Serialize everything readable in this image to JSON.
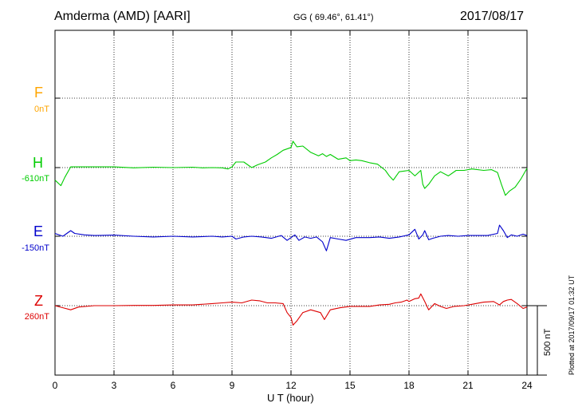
{
  "header": {
    "station": "Amderma (AMD)  [AARI]",
    "coords": "GG ( 69.46°,  61.41°)",
    "date": "2017/08/17"
  },
  "footer": {
    "xlabel": "U T (hour)",
    "plotted": "Plotted at 2017/09/17 01:32 UT",
    "scale_label": "500 nT"
  },
  "components": [
    {
      "name": "F",
      "baseline": "0nT",
      "color": "#ffa500"
    },
    {
      "name": "H",
      "baseline": "-610nT",
      "color": "#00cc00"
    },
    {
      "name": "E",
      "baseline": "-150nT",
      "color": "#0000cc"
    },
    {
      "name": "Z",
      "baseline": "260nT",
      "color": "#dd0000"
    }
  ],
  "chart_data": {
    "type": "line",
    "x_unit": "UT hour",
    "xlim": [
      0,
      24
    ],
    "x_ticks": [
      0,
      3,
      6,
      9,
      12,
      15,
      18,
      21,
      24
    ],
    "y_unit": "nT relative to each component baseline",
    "grid": true,
    "series": [
      {
        "name": "H",
        "color": "#00cc00",
        "points": [
          [
            0,
            -90
          ],
          [
            0.3,
            -130
          ],
          [
            0.5,
            -70
          ],
          [
            0.8,
            5
          ],
          [
            1.5,
            5
          ],
          [
            2,
            5
          ],
          [
            3,
            5
          ],
          [
            4,
            -2
          ],
          [
            5,
            3
          ],
          [
            6,
            0
          ],
          [
            7,
            3
          ],
          [
            7.5,
            -2
          ],
          [
            8,
            0
          ],
          [
            8.5,
            -2
          ],
          [
            8.8,
            -10
          ],
          [
            9,
            5
          ],
          [
            9.2,
            40
          ],
          [
            9.6,
            40
          ],
          [
            10,
            0
          ],
          [
            10.3,
            20
          ],
          [
            10.7,
            40
          ],
          [
            11,
            70
          ],
          [
            11.3,
            95
          ],
          [
            11.6,
            125
          ],
          [
            12,
            145
          ],
          [
            12.1,
            190
          ],
          [
            12.3,
            150
          ],
          [
            12.6,
            155
          ],
          [
            13,
            110
          ],
          [
            13.4,
            85
          ],
          [
            13.6,
            100
          ],
          [
            13.8,
            80
          ],
          [
            14,
            95
          ],
          [
            14.4,
            60
          ],
          [
            14.8,
            70
          ],
          [
            15,
            50
          ],
          [
            15.3,
            55
          ],
          [
            15.6,
            50
          ],
          [
            16,
            35
          ],
          [
            16.4,
            25
          ],
          [
            16.8,
            -20
          ],
          [
            17,
            -60
          ],
          [
            17.2,
            -90
          ],
          [
            17.5,
            -30
          ],
          [
            18,
            -20
          ],
          [
            18.3,
            -60
          ],
          [
            18.6,
            -20
          ],
          [
            18.7,
            -120
          ],
          [
            18.8,
            -150
          ],
          [
            19,
            -120
          ],
          [
            19.3,
            -60
          ],
          [
            19.6,
            -30
          ],
          [
            20,
            -60
          ],
          [
            20.4,
            -20
          ],
          [
            20.8,
            -20
          ],
          [
            21.2,
            -10
          ],
          [
            21.8,
            -20
          ],
          [
            22.2,
            -15
          ],
          [
            22.5,
            -35
          ],
          [
            22.7,
            -120
          ],
          [
            22.9,
            -200
          ],
          [
            23.1,
            -170
          ],
          [
            23.4,
            -140
          ],
          [
            23.7,
            -80
          ],
          [
            24,
            -5
          ]
        ]
      },
      {
        "name": "E",
        "color": "#0000cc",
        "points": [
          [
            0,
            20
          ],
          [
            0.4,
            0
          ],
          [
            0.8,
            40
          ],
          [
            1,
            20
          ],
          [
            1.5,
            10
          ],
          [
            2,
            5
          ],
          [
            3,
            8
          ],
          [
            4,
            0
          ],
          [
            5,
            -5
          ],
          [
            6,
            0
          ],
          [
            7,
            -5
          ],
          [
            8,
            0
          ],
          [
            8.5,
            -5
          ],
          [
            9,
            0
          ],
          [
            9.2,
            -20
          ],
          [
            9.6,
            -5
          ],
          [
            10,
            0
          ],
          [
            10.5,
            -5
          ],
          [
            11,
            -15
          ],
          [
            11.5,
            5
          ],
          [
            11.8,
            -30
          ],
          [
            12.2,
            10
          ],
          [
            12.4,
            -30
          ],
          [
            12.7,
            -5
          ],
          [
            13,
            -15
          ],
          [
            13.3,
            -5
          ],
          [
            13.6,
            -40
          ],
          [
            13.8,
            -105
          ],
          [
            14,
            -10
          ],
          [
            14.4,
            -20
          ],
          [
            14.8,
            -30
          ],
          [
            15.3,
            -10
          ],
          [
            16,
            -10
          ],
          [
            16.5,
            -5
          ],
          [
            17,
            -15
          ],
          [
            17.5,
            -5
          ],
          [
            18,
            10
          ],
          [
            18.3,
            50
          ],
          [
            18.5,
            -20
          ],
          [
            18.7,
            10
          ],
          [
            18.8,
            40
          ],
          [
            19,
            -25
          ],
          [
            19.2,
            -15
          ],
          [
            19.6,
            0
          ],
          [
            20,
            5
          ],
          [
            20.5,
            0
          ],
          [
            21,
            5
          ],
          [
            22,
            5
          ],
          [
            22.5,
            20
          ],
          [
            22.6,
            80
          ],
          [
            22.8,
            40
          ],
          [
            23,
            -10
          ],
          [
            23.2,
            10
          ],
          [
            23.5,
            0
          ],
          [
            23.8,
            15
          ],
          [
            24,
            5
          ]
        ]
      },
      {
        "name": "Z",
        "color": "#dd0000",
        "points": [
          [
            0,
            0
          ],
          [
            0.4,
            -15
          ],
          [
            0.8,
            -30
          ],
          [
            1.2,
            -10
          ],
          [
            2,
            0
          ],
          [
            3,
            0
          ],
          [
            4,
            2
          ],
          [
            5,
            2
          ],
          [
            6,
            5
          ],
          [
            7,
            5
          ],
          [
            8,
            15
          ],
          [
            8.5,
            20
          ],
          [
            9,
            25
          ],
          [
            9.5,
            20
          ],
          [
            10,
            40
          ],
          [
            10.4,
            35
          ],
          [
            10.8,
            20
          ],
          [
            11.2,
            20
          ],
          [
            11.6,
            15
          ],
          [
            11.8,
            -50
          ],
          [
            12,
            -85
          ],
          [
            12.1,
            -140
          ],
          [
            12.3,
            -110
          ],
          [
            12.6,
            -50
          ],
          [
            13,
            -30
          ],
          [
            13.5,
            -50
          ],
          [
            13.7,
            -100
          ],
          [
            14,
            -30
          ],
          [
            14.5,
            -15
          ],
          [
            15,
            -5
          ],
          [
            15.5,
            -5
          ],
          [
            16,
            -5
          ],
          [
            16.5,
            5
          ],
          [
            17,
            10
          ],
          [
            17.3,
            20
          ],
          [
            17.6,
            25
          ],
          [
            17.9,
            40
          ],
          [
            18,
            30
          ],
          [
            18.3,
            50
          ],
          [
            18.5,
            55
          ],
          [
            18.6,
            85
          ],
          [
            18.8,
            30
          ],
          [
            19,
            -30
          ],
          [
            19.3,
            15
          ],
          [
            19.6,
            -5
          ],
          [
            19.9,
            -20
          ],
          [
            20.3,
            -5
          ],
          [
            20.8,
            0
          ],
          [
            21.2,
            10
          ],
          [
            21.8,
            25
          ],
          [
            22.3,
            30
          ],
          [
            22.6,
            5
          ],
          [
            22.8,
            30
          ],
          [
            23,
            40
          ],
          [
            23.2,
            45
          ],
          [
            23.5,
            15
          ],
          [
            23.8,
            -20
          ],
          [
            24,
            -10
          ]
        ]
      }
    ]
  }
}
